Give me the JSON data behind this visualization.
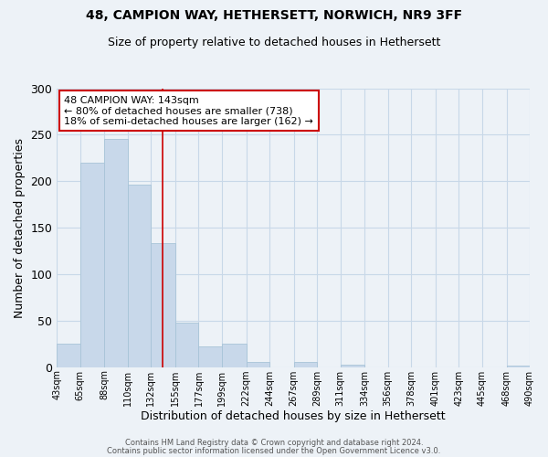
{
  "title1": "48, CAMPION WAY, HETHERSETT, NORWICH, NR9 3FF",
  "title2": "Size of property relative to detached houses in Hethersett",
  "xlabel": "Distribution of detached houses by size in Hethersett",
  "ylabel": "Number of detached properties",
  "bar_edges": [
    43,
    65,
    88,
    110,
    132,
    155,
    177,
    199,
    222,
    244,
    267,
    289,
    311,
    334,
    356,
    378,
    401,
    423,
    445,
    468,
    490
  ],
  "bar_heights": [
    25,
    220,
    245,
    196,
    133,
    48,
    22,
    25,
    6,
    0,
    6,
    0,
    3,
    0,
    0,
    0,
    0,
    0,
    0,
    2
  ],
  "bar_color": "#c8d8ea",
  "bar_edge_color": "#a8c4d8",
  "vline_x": 143,
  "vline_color": "#cc0000",
  "annotation_text": "48 CAMPION WAY: 143sqm\n← 80% of detached houses are smaller (738)\n18% of semi-detached houses are larger (162) →",
  "annotation_box_color": "white",
  "annotation_box_edge": "#cc0000",
  "ylim": [
    0,
    300
  ],
  "yticks": [
    0,
    50,
    100,
    150,
    200,
    250,
    300
  ],
  "tick_labels": [
    "43sqm",
    "65sqm",
    "88sqm",
    "110sqm",
    "132sqm",
    "155sqm",
    "177sqm",
    "199sqm",
    "222sqm",
    "244sqm",
    "267sqm",
    "289sqm",
    "311sqm",
    "334sqm",
    "356sqm",
    "378sqm",
    "401sqm",
    "423sqm",
    "445sqm",
    "468sqm",
    "490sqm"
  ],
  "footer1": "Contains HM Land Registry data © Crown copyright and database right 2024.",
  "footer2": "Contains public sector information licensed under the Open Government Licence v3.0.",
  "bg_color": "#edf2f7",
  "grid_color": "#c8d8e8",
  "title1_fontsize": 10,
  "title2_fontsize": 9,
  "ylabel_fontsize": 9,
  "xlabel_fontsize": 9,
  "tick_fontsize": 7,
  "annot_fontsize": 8,
  "footer_fontsize": 6
}
